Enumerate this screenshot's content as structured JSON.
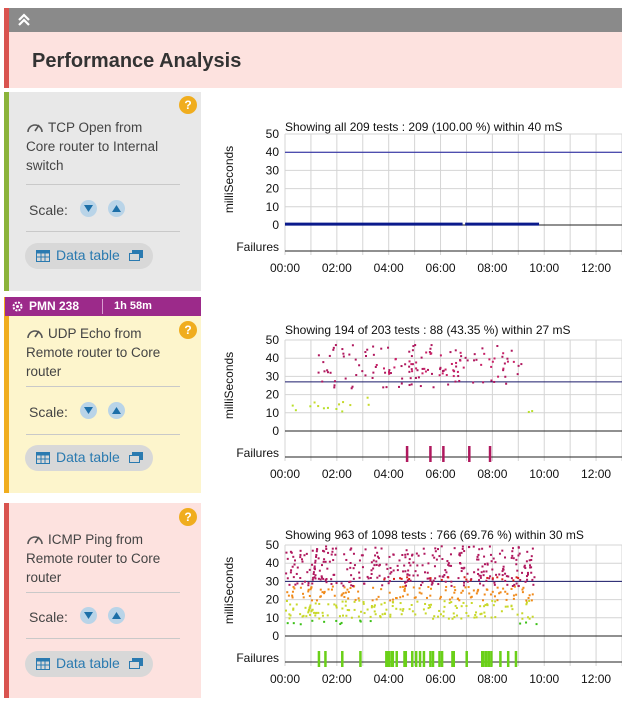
{
  "page": {
    "title": "Performance Analysis",
    "accent_color": "#d9534f",
    "collapse_icon": "double-chevron-up-icon"
  },
  "panels": [
    {
      "title": "TCP Open from Core router to Internal switch",
      "title_lines": [
        "TCP Open from",
        "Core router to Internal",
        "switch"
      ],
      "icon": "gauge-icon",
      "scale_label": "Scale:",
      "data_table_label": "Data table",
      "accent_color": "#8bb33a",
      "background": "#e8e8e8"
    },
    {
      "title": "UDP Echo from Remote router to Core router",
      "title_lines": [
        "UDP Echo from",
        "Remote router to Core",
        "router"
      ],
      "icon": "gauge-icon",
      "scale_label": "Scale:",
      "data_table_label": "Data table",
      "accent_color": "#f0ad1e",
      "background": "#fdf5cc",
      "pmn": {
        "id": "PMN 238",
        "duration": "1h 58m",
        "color": "#9c2a8a"
      }
    },
    {
      "title": "ICMP Ping from Remote router to Core router",
      "title_lines": [
        "ICMP Ping from",
        "Remote router to Core",
        "router"
      ],
      "icon": "gauge-icon",
      "scale_label": "Scale:",
      "data_table_label": "Data table",
      "accent_color": "#d9534f",
      "background": "#fde2df"
    }
  ],
  "charts": [
    {
      "title": "Showing all 209 tests : 209 (100.00 %) within 40 mS",
      "ylabel": "milliSeconds",
      "failures_label": "Failures",
      "yticks": [
        0,
        10,
        20,
        30,
        40,
        50
      ],
      "xticks": [
        "00:00",
        "02:00",
        "04:00",
        "06:00",
        "08:00",
        "10:00",
        "12:00"
      ]
    },
    {
      "title": "Showing 194 of 203 tests : 88 (43.35 %) within 27 mS",
      "ylabel": "milliSeconds",
      "failures_label": "Failures",
      "yticks": [
        0,
        10,
        20,
        30,
        40,
        50
      ],
      "xticks": [
        "00:00",
        "02:00",
        "04:00",
        "06:00",
        "08:00",
        "10:00",
        "12:00"
      ]
    },
    {
      "title": "Showing 963 of 1098 tests : 766 (69.76 %) within 30 mS",
      "ylabel": "milliSeconds",
      "failures_label": "Failures",
      "yticks": [
        0,
        10,
        20,
        30,
        40,
        50
      ],
      "xticks": [
        "00:00",
        "02:00",
        "04:00",
        "06:00",
        "08:00",
        "10:00",
        "12:00"
      ]
    }
  ],
  "chart_data": [
    {
      "type": "scatter",
      "title": "Showing all 209 tests : 209 (100.00 %) within 40 mS",
      "ylabel": "milliSeconds",
      "xlim_hours": [
        0,
        13
      ],
      "ylim": [
        0,
        50
      ],
      "threshold": 40,
      "threshold_color": "#1a1a9c",
      "series": [
        {
          "color": "#0a1a8c",
          "segments": [
            {
              "from": 0.0,
              "to": 6.85,
              "value": 0.5
            },
            {
              "from": 6.95,
              "to": 9.8,
              "value": 0.5
            }
          ]
        }
      ],
      "failures": []
    },
    {
      "type": "scatter",
      "title": "Showing 194 of 203 tests : 88 (43.35 %) within 27 mS",
      "ylabel": "milliSeconds",
      "xlim_hours": [
        0,
        13
      ],
      "ylim": [
        0,
        50
      ],
      "threshold": 27,
      "threshold_color": "#1a1a6a",
      "bands": [
        {
          "from": 0.0,
          "to": 3.3,
          "min": 11,
          "max": 15,
          "color": "#b8e02a"
        },
        {
          "from": 0.8,
          "to": 3.3,
          "min": 14,
          "max": 19,
          "color": "#c6d92a"
        },
        {
          "from": 1.2,
          "to": 9.3,
          "min": 24,
          "max": 48,
          "color": "#b0185e"
        },
        {
          "from": 3.5,
          "to": 9.0,
          "min": 30,
          "max": 44,
          "color": "#c82066"
        },
        {
          "from": 9.0,
          "to": 9.8,
          "min": 11,
          "max": 16,
          "color": "#b8e02a"
        }
      ],
      "failures": [
        4.7,
        5.6,
        6.1,
        7.1,
        7.9
      ],
      "failure_color": "#b0185e"
    },
    {
      "type": "scatter",
      "title": "Showing 963 of 1098 tests : 766 (69.76 %) within 30 mS",
      "ylabel": "milliSeconds",
      "xlim_hours": [
        0,
        13
      ],
      "ylim": [
        0,
        50
      ],
      "threshold": 30,
      "threshold_color": "#1a1a6a",
      "bands": [
        {
          "from": 0.0,
          "to": 3.4,
          "min": 7,
          "max": 9,
          "color": "#3cc018"
        },
        {
          "from": 0.0,
          "to": 9.6,
          "min": 10,
          "max": 20,
          "color": "#c8d82a"
        },
        {
          "from": 0.0,
          "to": 9.6,
          "min": 20,
          "max": 28,
          "color": "#f08a1a"
        },
        {
          "from": 0.0,
          "to": 9.6,
          "min": 28,
          "max": 50,
          "color": "#b0185e"
        },
        {
          "from": 3.3,
          "to": 9.2,
          "min": 31,
          "max": 33,
          "color": "#d8201a"
        },
        {
          "from": 9.0,
          "to": 9.8,
          "min": 7,
          "max": 9,
          "color": "#3cc018"
        }
      ],
      "failures": [
        1.3,
        1.55,
        2.2,
        2.9,
        3.9,
        3.95,
        4.0,
        4.1,
        4.15,
        4.3,
        4.6,
        4.65,
        4.9,
        5.05,
        5.2,
        5.35,
        5.6,
        5.7,
        5.95,
        6.05,
        6.45,
        6.5,
        7.0,
        7.6,
        7.65,
        7.75,
        7.85,
        7.95,
        8.3,
        8.6,
        8.9
      ],
      "failure_color": "#6ad018"
    }
  ]
}
